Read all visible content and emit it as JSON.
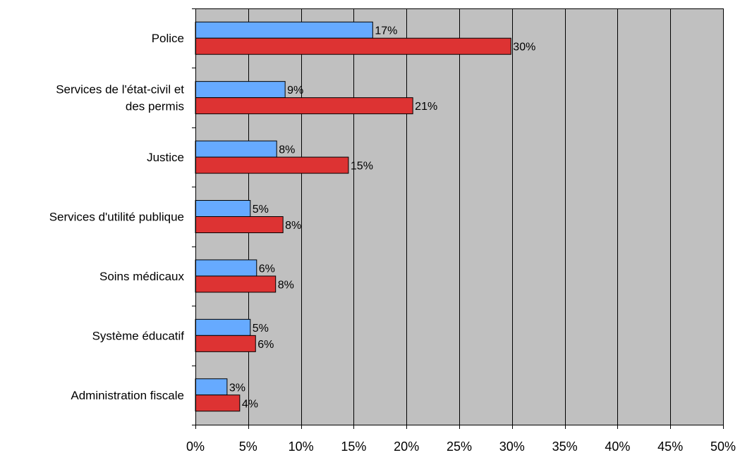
{
  "chart_data": {
    "type": "bar",
    "orientation": "horizontal",
    "categories": [
      [
        "Police"
      ],
      [
        "Services de l'état-civil et",
        "des permis"
      ],
      [
        "Justice"
      ],
      [
        "Services d'utilité publique"
      ],
      [
        "Soins médicaux"
      ],
      [
        "Système éducatif"
      ],
      [
        "Administration fiscale"
      ]
    ],
    "series": [
      {
        "color": "#66aaff",
        "values": [
          16.8,
          8.5,
          7.7,
          5.2,
          5.8,
          5.2,
          3.0
        ],
        "labels": [
          "17%",
          "9%",
          "8%",
          "5%",
          "6%",
          "5%",
          "3%"
        ]
      },
      {
        "color": "#dd3333",
        "values": [
          29.9,
          20.6,
          14.5,
          8.3,
          7.6,
          5.7,
          4.2
        ],
        "labels": [
          "30%",
          "21%",
          "15%",
          "8%",
          "8%",
          "6%",
          "4%"
        ]
      }
    ],
    "xlim": [
      0,
      50
    ],
    "xticks": [
      0,
      5,
      10,
      15,
      20,
      25,
      30,
      35,
      40,
      45,
      50
    ],
    "xtick_labels": [
      "0%",
      "5%",
      "10%",
      "15%",
      "20%",
      "25%",
      "30%",
      "35%",
      "40%",
      "45%",
      "50%"
    ],
    "grid": true,
    "plot_background": "#c0c0c0",
    "legend": "none",
    "title": "",
    "xlabel": "",
    "ylabel": ""
  }
}
